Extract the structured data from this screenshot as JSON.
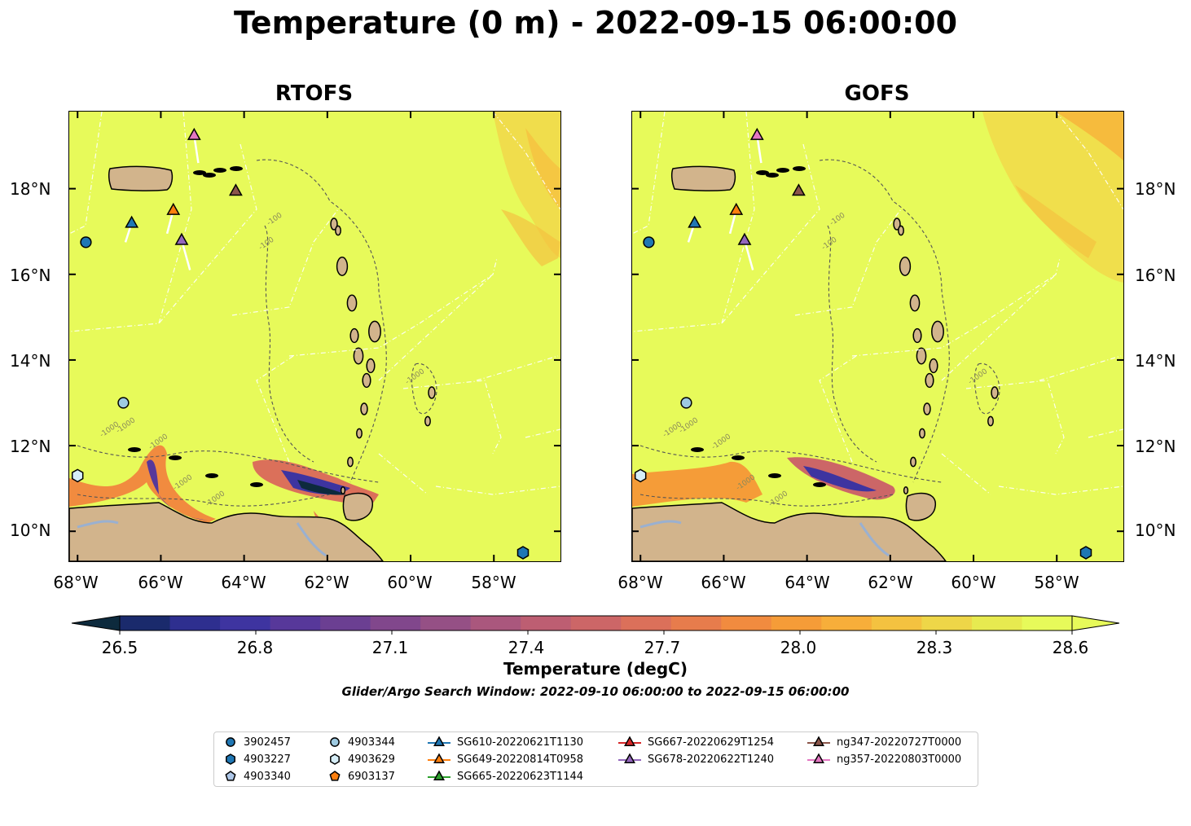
{
  "title": "Temperature (0 m) - 2022-09-15 06:00:00",
  "panels": [
    {
      "title": "RTOFS"
    },
    {
      "title": "GOFS"
    }
  ],
  "lon_ticks": [
    "68°W",
    "66°W",
    "64°W",
    "62°W",
    "60°W",
    "58°W"
  ],
  "lat_ticks": [
    "18°N",
    "16°N",
    "14°N",
    "12°N",
    "10°N"
  ],
  "contour_labels": [
    "-100",
    "-1000"
  ],
  "colorbar": {
    "label": "Temperature (degC)",
    "ticks": [
      "26.5",
      "26.8",
      "27.1",
      "27.4",
      "27.7",
      "28.0",
      "28.3",
      "28.6"
    ],
    "min": 26.5,
    "max": 28.6,
    "colormap": [
      "#0d2a3d",
      "#1a2a6c",
      "#2e2f8f",
      "#3e34a0",
      "#57389a",
      "#6b3f92",
      "#81478c",
      "#955085",
      "#aa577d",
      "#bd5e72",
      "#cc6667",
      "#db705a",
      "#e77c4c",
      "#f18b3f",
      "#f59c38",
      "#f7ae3a",
      "#f4c240",
      "#eed648",
      "#e7ea50",
      "#e7fa5a"
    ]
  },
  "subtitle": "Glider/Argo Search Window: 2022-09-10 06:00:00 to 2022-09-15 06:00:00",
  "land_color": "#d2b48c",
  "ocean_color": "#e7fa5a",
  "legend": {
    "items": [
      {
        "label": "3902457",
        "marker": "circle",
        "color": "#1f77b4"
      },
      {
        "label": "4903227",
        "marker": "hexagon",
        "color": "#1f77b4"
      },
      {
        "label": "4903340",
        "marker": "pentagon",
        "color": "#aec7e8"
      },
      {
        "label": "4903344",
        "marker": "circle",
        "color": "#9ecae1"
      },
      {
        "label": "4903629",
        "marker": "hexagon",
        "color": "#d6eef8"
      },
      {
        "label": "6903137",
        "marker": "pentagon",
        "color": "#ff7f0e"
      },
      {
        "label": "SG610-20220621T1130",
        "marker": "triangle",
        "color": "#1f77b4"
      },
      {
        "label": "SG649-20220814T0958",
        "marker": "triangle",
        "color": "#ff7f0e"
      },
      {
        "label": "SG665-20220623T1144",
        "marker": "triangle",
        "color": "#2ca02c"
      },
      {
        "label": "SG667-20220629T1254",
        "marker": "triangle",
        "color": "#d62728"
      },
      {
        "label": "SG678-20220622T1240",
        "marker": "triangle",
        "color": "#9467bd"
      },
      {
        "label": "ng347-20220727T0000",
        "marker": "triangle",
        "color": "#8c564b"
      },
      {
        "label": "ng357-20220803T0000",
        "marker": "triangle",
        "color": "#e377c2"
      }
    ]
  },
  "observations": [
    {
      "id": "3902457",
      "lon": -67.8,
      "lat": 16.75
    },
    {
      "id": "4903344",
      "lon": -66.9,
      "lat": 13.0
    },
    {
      "id": "4903629",
      "lon": -68.0,
      "lat": 11.3
    },
    {
      "id": "4903227",
      "lon": -57.3,
      "lat": 9.5
    },
    {
      "id": "SG610-20220621T1130",
      "lon": -66.7,
      "lat": 17.2
    },
    {
      "id": "SG649-20220814T0958",
      "lon": -65.7,
      "lat": 17.5
    },
    {
      "id": "SG678-20220622T1240",
      "lon": -65.5,
      "lat": 16.8
    },
    {
      "id": "ng347-20220727T0000",
      "lon": -64.2,
      "lat": 17.95
    },
    {
      "id": "ng357-20220803T0000",
      "lon": -65.2,
      "lat": 19.25
    }
  ]
}
